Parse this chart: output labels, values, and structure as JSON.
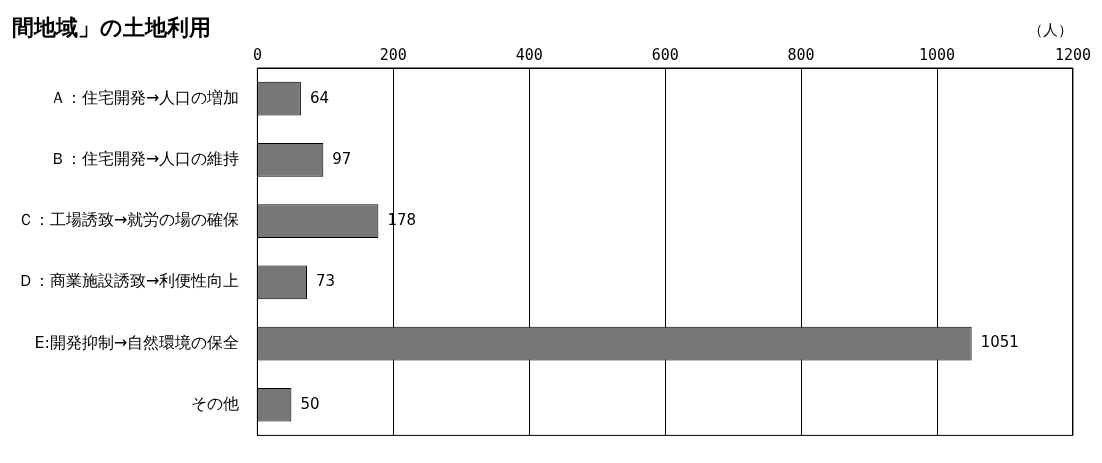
{
  "chart_data": {
    "type": "bar",
    "orientation": "horizontal",
    "title": "間地域」の土地利用",
    "xlabel": "（人）",
    "categories": [
      "Ａ：住宅開発→人口の増加",
      "Ｂ：住宅開発→人口の維持",
      "Ｃ：工場誘致→就労の場の確保",
      "Ｄ：商業施設誘致→利便性向上",
      "E:開発抑制→自然環境の保全",
      "その他"
    ],
    "values": [
      64,
      97,
      178,
      73,
      1051,
      50
    ],
    "color": "#777777",
    "xlim": [
      0,
      1200
    ],
    "xticks": [
      0,
      200,
      400,
      600,
      800,
      1000,
      1200
    ],
    "grid": "x",
    "data_labels": true,
    "legend": false
  }
}
